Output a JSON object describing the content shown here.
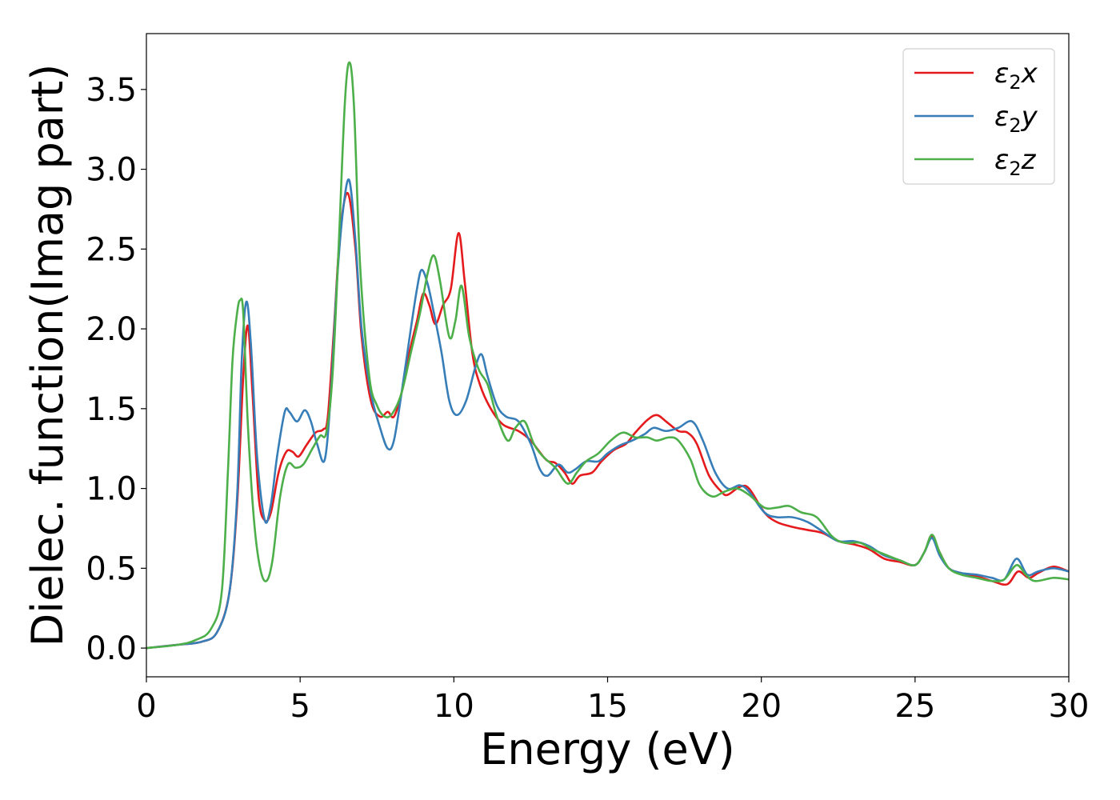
{
  "chart_data": {
    "type": "line",
    "xlabel": "Energy (eV)",
    "ylabel": "Dielec. function(Imag part)",
    "xlim": [
      0,
      30
    ],
    "ylim": [
      -0.18,
      3.85
    ],
    "xticks": [
      0,
      5,
      10,
      15,
      20,
      25,
      30
    ],
    "xtick_labels": [
      "0",
      "5",
      "10",
      "15",
      "20",
      "25",
      "30"
    ],
    "yticks": [
      0.0,
      0.5,
      1.0,
      1.5,
      2.0,
      2.5,
      3.0,
      3.5
    ],
    "ytick_labels": [
      "0.0",
      "0.5",
      "1.0",
      "1.5",
      "2.0",
      "2.5",
      "3.0",
      "3.5"
    ],
    "grid": false,
    "legend": {
      "position": "top-right",
      "entries": [
        {
          "symbol": "ε",
          "sub": "2",
          "axis": "x"
        },
        {
          "symbol": "ε",
          "sub": "2",
          "axis": "y"
        },
        {
          "symbol": "ε",
          "sub": "2",
          "axis": "z"
        }
      ]
    },
    "series": [
      {
        "name": "ε2x",
        "color": "#e41a1c",
        "points": [
          [
            0,
            0
          ],
          [
            1,
            0.02
          ],
          [
            1.8,
            0.04
          ],
          [
            2.3,
            0.1
          ],
          [
            2.7,
            0.35
          ],
          [
            2.95,
            0.9
          ],
          [
            3.15,
            1.7
          ],
          [
            3.3,
            2.02
          ],
          [
            3.45,
            1.6
          ],
          [
            3.65,
            0.95
          ],
          [
            3.85,
            0.8
          ],
          [
            4.05,
            0.85
          ],
          [
            4.3,
            1.1
          ],
          [
            4.55,
            1.23
          ],
          [
            4.75,
            1.23
          ],
          [
            4.95,
            1.2
          ],
          [
            5.2,
            1.27
          ],
          [
            5.5,
            1.35
          ],
          [
            5.75,
            1.37
          ],
          [
            5.9,
            1.45
          ],
          [
            6.1,
            2.0
          ],
          [
            6.3,
            2.6
          ],
          [
            6.55,
            2.85
          ],
          [
            6.8,
            2.5
          ],
          [
            7.0,
            1.95
          ],
          [
            7.3,
            1.55
          ],
          [
            7.6,
            1.45
          ],
          [
            7.85,
            1.48
          ],
          [
            8.05,
            1.45
          ],
          [
            8.3,
            1.6
          ],
          [
            8.55,
            1.85
          ],
          [
            8.8,
            2.05
          ],
          [
            9.0,
            2.22
          ],
          [
            9.2,
            2.15
          ],
          [
            9.4,
            2.03
          ],
          [
            9.65,
            2.15
          ],
          [
            9.9,
            2.25
          ],
          [
            10.15,
            2.6
          ],
          [
            10.35,
            2.3
          ],
          [
            10.6,
            1.85
          ],
          [
            10.85,
            1.65
          ],
          [
            11.2,
            1.5
          ],
          [
            11.6,
            1.4
          ],
          [
            12.1,
            1.36
          ],
          [
            12.5,
            1.3
          ],
          [
            13.0,
            1.18
          ],
          [
            13.3,
            1.16
          ],
          [
            13.6,
            1.1
          ],
          [
            13.85,
            1.03
          ],
          [
            14.1,
            1.08
          ],
          [
            14.5,
            1.1
          ],
          [
            14.8,
            1.17
          ],
          [
            15.2,
            1.24
          ],
          [
            15.6,
            1.28
          ],
          [
            15.9,
            1.35
          ],
          [
            16.3,
            1.43
          ],
          [
            16.6,
            1.46
          ],
          [
            16.9,
            1.42
          ],
          [
            17.3,
            1.36
          ],
          [
            17.6,
            1.35
          ],
          [
            17.9,
            1.28
          ],
          [
            18.3,
            1.08
          ],
          [
            18.7,
            0.98
          ],
          [
            18.9,
            0.96
          ],
          [
            19.3,
            1.01
          ],
          [
            19.6,
            1.0
          ],
          [
            20.1,
            0.85
          ],
          [
            20.5,
            0.79
          ],
          [
            21.0,
            0.76
          ],
          [
            21.5,
            0.74
          ],
          [
            22.0,
            0.72
          ],
          [
            22.5,
            0.67
          ],
          [
            23.0,
            0.65
          ],
          [
            23.5,
            0.62
          ],
          [
            24.0,
            0.56
          ],
          [
            24.5,
            0.54
          ],
          [
            25.0,
            0.52
          ],
          [
            25.3,
            0.6
          ],
          [
            25.55,
            0.7
          ],
          [
            25.8,
            0.6
          ],
          [
            26.1,
            0.5
          ],
          [
            26.5,
            0.47
          ],
          [
            27.0,
            0.45
          ],
          [
            27.5,
            0.42
          ],
          [
            28.0,
            0.4
          ],
          [
            28.35,
            0.48
          ],
          [
            28.7,
            0.44
          ],
          [
            29.0,
            0.47
          ],
          [
            29.5,
            0.51
          ],
          [
            30.0,
            0.48
          ]
        ]
      },
      {
        "name": "ε2y",
        "color": "#377eb8",
        "points": [
          [
            0,
            0
          ],
          [
            1,
            0.02
          ],
          [
            1.8,
            0.04
          ],
          [
            2.3,
            0.1
          ],
          [
            2.7,
            0.35
          ],
          [
            2.95,
            0.95
          ],
          [
            3.1,
            1.8
          ],
          [
            3.25,
            2.17
          ],
          [
            3.4,
            1.9
          ],
          [
            3.6,
            1.2
          ],
          [
            3.85,
            0.8
          ],
          [
            4.05,
            0.9
          ],
          [
            4.25,
            1.2
          ],
          [
            4.5,
            1.48
          ],
          [
            4.65,
            1.48
          ],
          [
            4.9,
            1.42
          ],
          [
            5.15,
            1.49
          ],
          [
            5.35,
            1.42
          ],
          [
            5.55,
            1.28
          ],
          [
            5.8,
            1.18
          ],
          [
            6.0,
            1.6
          ],
          [
            6.2,
            2.3
          ],
          [
            6.4,
            2.75
          ],
          [
            6.6,
            2.93
          ],
          [
            6.8,
            2.55
          ],
          [
            7.0,
            2.0
          ],
          [
            7.3,
            1.6
          ],
          [
            7.6,
            1.38
          ],
          [
            7.85,
            1.25
          ],
          [
            8.05,
            1.3
          ],
          [
            8.3,
            1.6
          ],
          [
            8.6,
            2.0
          ],
          [
            8.8,
            2.25
          ],
          [
            8.95,
            2.37
          ],
          [
            9.15,
            2.28
          ],
          [
            9.35,
            2.1
          ],
          [
            9.6,
            1.85
          ],
          [
            9.85,
            1.55
          ],
          [
            10.1,
            1.46
          ],
          [
            10.4,
            1.55
          ],
          [
            10.7,
            1.76
          ],
          [
            10.9,
            1.84
          ],
          [
            11.1,
            1.7
          ],
          [
            11.4,
            1.52
          ],
          [
            11.7,
            1.45
          ],
          [
            12.1,
            1.42
          ],
          [
            12.5,
            1.28
          ],
          [
            12.8,
            1.12
          ],
          [
            13.05,
            1.08
          ],
          [
            13.4,
            1.15
          ],
          [
            13.7,
            1.1
          ],
          [
            13.95,
            1.12
          ],
          [
            14.3,
            1.17
          ],
          [
            14.7,
            1.17
          ],
          [
            15.0,
            1.22
          ],
          [
            15.4,
            1.27
          ],
          [
            15.8,
            1.3
          ],
          [
            16.2,
            1.34
          ],
          [
            16.5,
            1.38
          ],
          [
            16.9,
            1.36
          ],
          [
            17.3,
            1.38
          ],
          [
            17.75,
            1.42
          ],
          [
            18.1,
            1.3
          ],
          [
            18.5,
            1.1
          ],
          [
            18.9,
            1.0
          ],
          [
            19.3,
            1.02
          ],
          [
            19.6,
            0.98
          ],
          [
            20.1,
            0.85
          ],
          [
            20.5,
            0.82
          ],
          [
            21.0,
            0.82
          ],
          [
            21.5,
            0.79
          ],
          [
            22.0,
            0.73
          ],
          [
            22.5,
            0.67
          ],
          [
            23.0,
            0.67
          ],
          [
            23.5,
            0.64
          ],
          [
            24.0,
            0.58
          ],
          [
            24.5,
            0.55
          ],
          [
            25.0,
            0.52
          ],
          [
            25.3,
            0.6
          ],
          [
            25.55,
            0.69
          ],
          [
            25.8,
            0.58
          ],
          [
            26.1,
            0.5
          ],
          [
            26.5,
            0.47
          ],
          [
            27.0,
            0.46
          ],
          [
            27.5,
            0.44
          ],
          [
            27.9,
            0.43
          ],
          [
            28.3,
            0.56
          ],
          [
            28.65,
            0.46
          ],
          [
            29.0,
            0.48
          ],
          [
            29.5,
            0.5
          ],
          [
            30.0,
            0.48
          ]
        ]
      },
      {
        "name": "ε2z",
        "color": "#4daf4a",
        "points": [
          [
            0,
            0
          ],
          [
            1,
            0.02
          ],
          [
            1.6,
            0.05
          ],
          [
            2.1,
            0.12
          ],
          [
            2.45,
            0.35
          ],
          [
            2.65,
            1.1
          ],
          [
            2.8,
            1.8
          ],
          [
            2.95,
            2.1
          ],
          [
            3.05,
            2.18
          ],
          [
            3.15,
            2.1
          ],
          [
            3.3,
            1.4
          ],
          [
            3.5,
            0.8
          ],
          [
            3.7,
            0.5
          ],
          [
            3.9,
            0.42
          ],
          [
            4.1,
            0.55
          ],
          [
            4.35,
            0.95
          ],
          [
            4.6,
            1.15
          ],
          [
            4.85,
            1.13
          ],
          [
            5.1,
            1.15
          ],
          [
            5.4,
            1.25
          ],
          [
            5.65,
            1.33
          ],
          [
            5.85,
            1.35
          ],
          [
            6.05,
            1.7
          ],
          [
            6.25,
            2.5
          ],
          [
            6.45,
            3.4
          ],
          [
            6.6,
            3.67
          ],
          [
            6.75,
            3.4
          ],
          [
            6.95,
            2.4
          ],
          [
            7.25,
            1.7
          ],
          [
            7.5,
            1.52
          ],
          [
            7.75,
            1.45
          ],
          [
            8.0,
            1.47
          ],
          [
            8.3,
            1.6
          ],
          [
            8.6,
            1.85
          ],
          [
            8.9,
            2.1
          ],
          [
            9.15,
            2.35
          ],
          [
            9.35,
            2.46
          ],
          [
            9.55,
            2.3
          ],
          [
            9.85,
            1.95
          ],
          [
            10.05,
            2.05
          ],
          [
            10.25,
            2.27
          ],
          [
            10.5,
            1.95
          ],
          [
            10.8,
            1.75
          ],
          [
            11.1,
            1.65
          ],
          [
            11.4,
            1.45
          ],
          [
            11.75,
            1.3
          ],
          [
            12.0,
            1.38
          ],
          [
            12.3,
            1.42
          ],
          [
            12.6,
            1.28
          ],
          [
            12.9,
            1.2
          ],
          [
            13.3,
            1.13
          ],
          [
            13.7,
            1.03
          ],
          [
            14.0,
            1.1
          ],
          [
            14.3,
            1.17
          ],
          [
            14.7,
            1.22
          ],
          [
            15.1,
            1.3
          ],
          [
            15.5,
            1.35
          ],
          [
            15.9,
            1.32
          ],
          [
            16.3,
            1.32
          ],
          [
            16.6,
            1.3
          ],
          [
            17.0,
            1.32
          ],
          [
            17.3,
            1.3
          ],
          [
            17.7,
            1.18
          ],
          [
            18.0,
            1.02
          ],
          [
            18.4,
            0.95
          ],
          [
            18.8,
            0.98
          ],
          [
            19.2,
            1.0
          ],
          [
            19.6,
            0.96
          ],
          [
            20.1,
            0.88
          ],
          [
            20.5,
            0.88
          ],
          [
            20.9,
            0.89
          ],
          [
            21.3,
            0.85
          ],
          [
            21.8,
            0.82
          ],
          [
            22.3,
            0.7
          ],
          [
            22.7,
            0.66
          ],
          [
            23.2,
            0.66
          ],
          [
            23.6,
            0.62
          ],
          [
            24.1,
            0.58
          ],
          [
            24.5,
            0.55
          ],
          [
            25.0,
            0.52
          ],
          [
            25.3,
            0.6
          ],
          [
            25.55,
            0.71
          ],
          [
            25.8,
            0.6
          ],
          [
            26.1,
            0.5
          ],
          [
            26.5,
            0.46
          ],
          [
            27.0,
            0.44
          ],
          [
            27.5,
            0.42
          ],
          [
            27.9,
            0.43
          ],
          [
            28.3,
            0.52
          ],
          [
            28.6,
            0.46
          ],
          [
            28.9,
            0.42
          ],
          [
            29.5,
            0.44
          ],
          [
            30.0,
            0.43
          ]
        ]
      }
    ]
  }
}
